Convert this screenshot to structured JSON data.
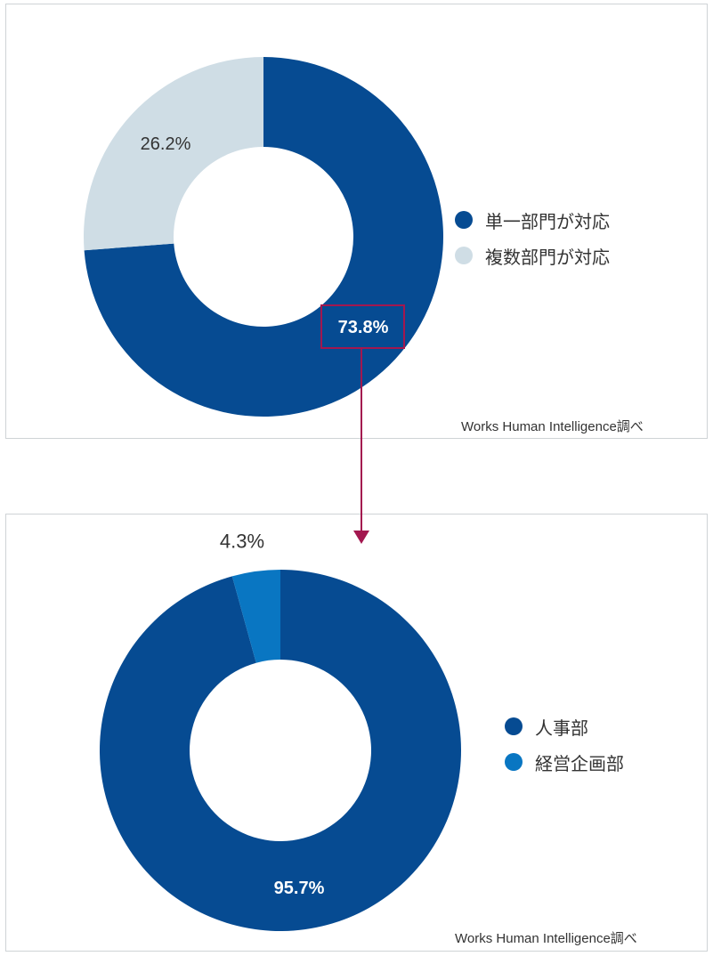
{
  "colors": {
    "dark_blue": "#064b92",
    "light_gray_blue": "#cfdde5",
    "medium_blue": "#0976c2",
    "highlight": "#a3174f"
  },
  "chart_data": [
    {
      "type": "pie",
      "title": "",
      "categories": [
        "単一部門が対応",
        "複数部門が対応"
      ],
      "values": [
        73.8,
        26.2
      ],
      "labels": [
        "73.8%",
        "26.2%"
      ],
      "colors": [
        "#064b92",
        "#cfdde5"
      ],
      "legend": "right",
      "source": "Works Human Intelligence調べ",
      "highlight": "73.8%"
    },
    {
      "type": "pie",
      "title": "",
      "categories": [
        "人事部",
        "経営企画部"
      ],
      "values": [
        95.7,
        4.3
      ],
      "labels": [
        "95.7%",
        "4.3%"
      ],
      "colors": [
        "#064b92",
        "#0976c2"
      ],
      "legend": "right",
      "source": "Works Human Intelligence調べ"
    }
  ]
}
